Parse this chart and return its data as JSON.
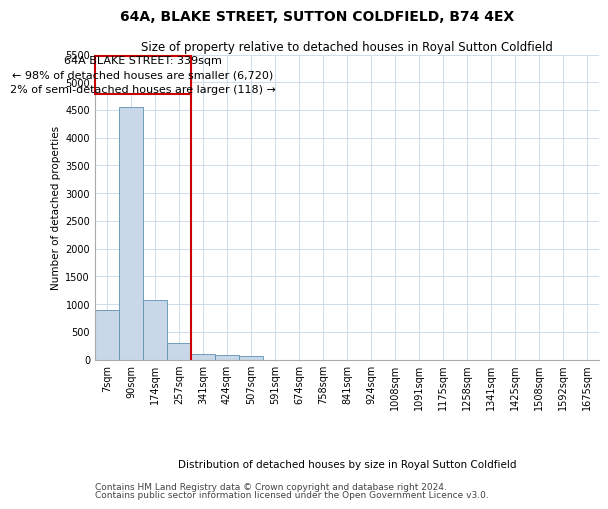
{
  "title": "64A, BLAKE STREET, SUTTON COLDFIELD, B74 4EX",
  "subtitle": "Size of property relative to detached houses in Royal Sutton Coldfield",
  "xlabel": "Distribution of detached houses by size in Royal Sutton Coldfield",
  "ylabel": "Number of detached properties",
  "footer_line1": "Contains HM Land Registry data © Crown copyright and database right 2024.",
  "footer_line2": "Contains public sector information licensed under the Open Government Licence v3.0.",
  "annotation_line1": "64A BLAKE STREET: 339sqm",
  "annotation_line2": "← 98% of detached houses are smaller (6,720)",
  "annotation_line3": "2% of semi-detached houses are larger (118) →",
  "categories": [
    "7sqm",
    "90sqm",
    "174sqm",
    "257sqm",
    "341sqm",
    "424sqm",
    "507sqm",
    "591sqm",
    "674sqm",
    "758sqm",
    "841sqm",
    "924sqm",
    "1008sqm",
    "1091sqm",
    "1175sqm",
    "1258sqm",
    "1341sqm",
    "1425sqm",
    "1508sqm",
    "1592sqm",
    "1675sqm"
  ],
  "bar_heights": [
    900,
    4550,
    1075,
    290,
    100,
    80,
    55,
    0,
    0,
    0,
    0,
    0,
    0,
    0,
    0,
    0,
    0,
    0,
    0,
    0,
    0
  ],
  "bar_color": "#c8d8e8",
  "bar_edge_color": "#6090b0",
  "grid_color": "#c8d8e8",
  "annotation_box_color": "#cc0000",
  "property_line_color": "#cc0000",
  "property_line_index": 4,
  "ylim": [
    0,
    5500
  ],
  "yticks": [
    0,
    500,
    1000,
    1500,
    2000,
    2500,
    3000,
    3500,
    4000,
    4500,
    5000,
    5500
  ],
  "background_color": "#ffffff",
  "title_fontsize": 10,
  "subtitle_fontsize": 8.5,
  "axis_fontsize": 7.5,
  "tick_fontsize": 7,
  "annotation_fontsize": 8,
  "footer_fontsize": 6.5
}
